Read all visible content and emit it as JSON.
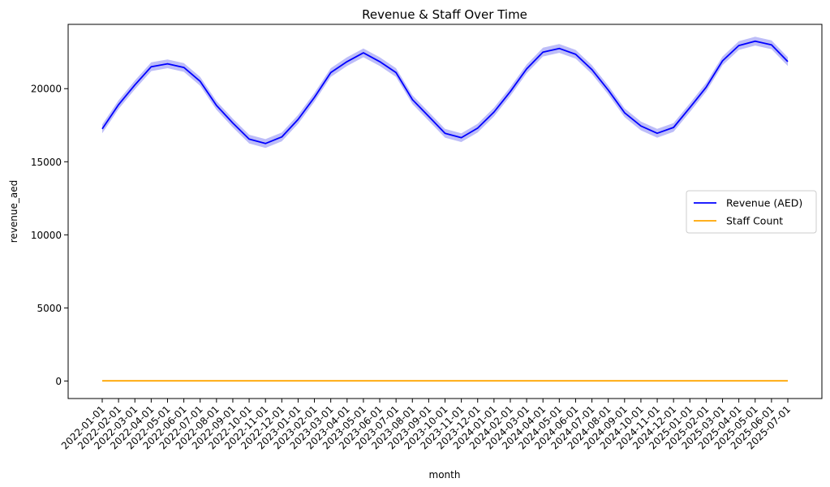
{
  "chart_data": {
    "type": "line",
    "title": "Revenue & Staff Over Time",
    "xlabel": "month",
    "ylabel": "revenue_aed",
    "ylim": [
      -1200,
      24400
    ],
    "yticks": [
      0,
      5000,
      10000,
      15000,
      20000
    ],
    "grid": false,
    "legend_position": "center-right",
    "categories": [
      "2022-01-01",
      "2022-02-01",
      "2022-03-01",
      "2022-04-01",
      "2022-05-01",
      "2022-06-01",
      "2022-07-01",
      "2022-08-01",
      "2022-09-01",
      "2022-10-01",
      "2022-11-01",
      "2022-12-01",
      "2023-01-01",
      "2023-02-01",
      "2023-03-01",
      "2023-04-01",
      "2023-05-01",
      "2023-06-01",
      "2023-07-01",
      "2023-08-01",
      "2023-09-01",
      "2023-10-01",
      "2023-11-01",
      "2023-12-01",
      "2024-01-01",
      "2024-02-01",
      "2024-03-01",
      "2024-04-01",
      "2024-05-01",
      "2024-06-01",
      "2024-07-01",
      "2024-08-01",
      "2024-09-01",
      "2024-10-01",
      "2024-11-01",
      "2024-12-01",
      "2025-01-01",
      "2025-02-01",
      "2025-03-01",
      "2025-04-01",
      "2025-05-01",
      "2025-06-01",
      "2025-07-01"
    ],
    "series": [
      {
        "name": "Revenue (AED)",
        "color": "#0000ff",
        "band_color": "#9a9af5",
        "values": [
          17250,
          18900,
          20250,
          21500,
          21700,
          21450,
          20500,
          18850,
          17650,
          16550,
          16250,
          16700,
          17900,
          19400,
          21100,
          21850,
          22450,
          21850,
          21100,
          19250,
          18100,
          16950,
          16650,
          17300,
          18400,
          19800,
          21350,
          22500,
          22750,
          22350,
          21300,
          19900,
          18350,
          17450,
          16950,
          17350,
          18700,
          20100,
          21900,
          22950,
          23250,
          23000,
          21850
        ],
        "band_half_width": 300
      },
      {
        "name": "Staff Count",
        "color": "#ffa500",
        "values": [
          9,
          9,
          9,
          9,
          9,
          9,
          9,
          9,
          9,
          9,
          9,
          9,
          9,
          9,
          9,
          9,
          9,
          9,
          9,
          9,
          9,
          9,
          9,
          9,
          9,
          9,
          9,
          9,
          9,
          9,
          9,
          9,
          9,
          9,
          9,
          9,
          9,
          9,
          9,
          9,
          9,
          9,
          9
        ]
      }
    ]
  }
}
